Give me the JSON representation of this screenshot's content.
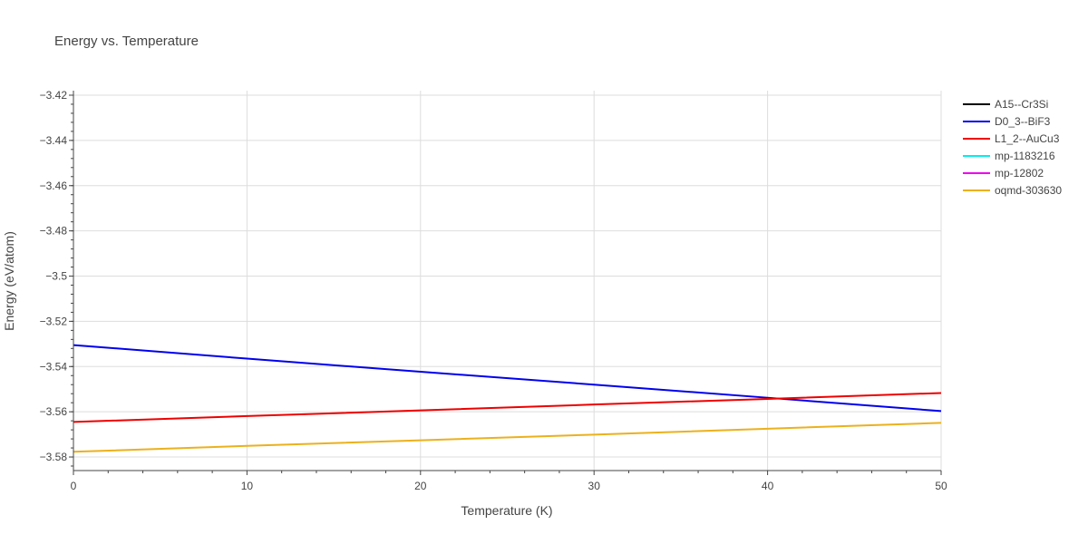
{
  "chart_data": {
    "type": "line",
    "title": "Energy vs. Temperature",
    "xlabel": "Temperature (K)",
    "ylabel": "Energy (eV/atom)",
    "xlim": [
      0,
      50
    ],
    "ylim": [
      -3.586,
      -3.418
    ],
    "x_ticks": [
      0,
      10,
      20,
      30,
      40,
      50
    ],
    "x_tick_labels": [
      "0",
      "10",
      "20",
      "30",
      "40",
      "50"
    ],
    "y_ticks": [
      -3.42,
      -3.44,
      -3.46,
      -3.48,
      -3.5,
      -3.52,
      -3.54,
      -3.56,
      -3.58
    ],
    "y_tick_labels": [
      "−3.42",
      "−3.44",
      "−3.46",
      "−3.48",
      "−3.5",
      "−3.52",
      "−3.54",
      "−3.56",
      "−3.58"
    ],
    "grid": true,
    "legend_position": "right",
    "series": [
      {
        "name": "A15--Cr3Si",
        "color": "#000000",
        "x": [],
        "y": []
      },
      {
        "name": "D0_3--BiF3",
        "color": "#0000ee",
        "x": [
          0,
          10,
          20,
          30,
          40,
          50
        ],
        "y": [
          -3.5305,
          -3.5365,
          -3.5423,
          -3.548,
          -3.5538,
          -3.5597
        ]
      },
      {
        "name": "L1_2--AuCu3",
        "color": "#ee0000",
        "x": [
          0,
          10,
          20,
          30,
          40,
          50
        ],
        "y": [
          -3.5645,
          -3.5619,
          -3.5594,
          -3.5568,
          -3.5543,
          -3.5517
        ]
      },
      {
        "name": "mp-1183216",
        "color": "#00eeee",
        "x": [],
        "y": []
      },
      {
        "name": "mp-12802",
        "color": "#ee00ee",
        "x": [],
        "y": []
      },
      {
        "name": "oqmd-303630",
        "color": "#ebb11d",
        "x": [
          0,
          10,
          20,
          30,
          40,
          50
        ],
        "y": [
          -3.5777,
          -3.5751,
          -3.5726,
          -3.5701,
          -3.5675,
          -3.5649
        ]
      }
    ]
  }
}
